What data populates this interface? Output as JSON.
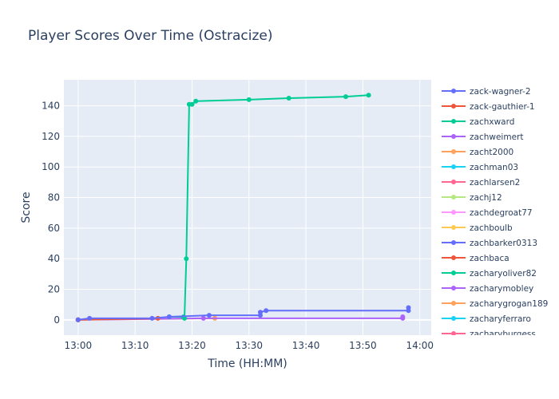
{
  "chart_data": {
    "type": "line",
    "title": "Player Scores Over Time (Ostracize)",
    "xlabel": "Time (HH:MM)",
    "ylabel": "Score",
    "x_axis_kind": "time",
    "xlim": [
      "12:57:30",
      "14:02:00"
    ],
    "ylim": [
      -10,
      157
    ],
    "x_ticks": [
      "13:00",
      "13:10",
      "13:20",
      "13:30",
      "13:40",
      "13:50",
      "14:00"
    ],
    "y_ticks": [
      0,
      20,
      40,
      60,
      80,
      100,
      120,
      140
    ],
    "grid": true,
    "legend_position": "right",
    "series": [
      {
        "name": "zack-wagner-2",
        "color": "#636efa",
        "points": [
          [
            "13:00:00",
            0
          ],
          [
            "13:02:00",
            1
          ],
          [
            "13:13:00",
            1
          ],
          [
            "13:16:00",
            2
          ],
          [
            "13:23:00",
            3
          ],
          [
            "13:32:00",
            3
          ],
          [
            "13:32:00",
            5
          ],
          [
            "13:33:00",
            6
          ],
          [
            "13:58:00",
            6
          ],
          [
            "13:58:00",
            8
          ]
        ]
      },
      {
        "name": "zack-gauthier-1",
        "color": "#ef553b",
        "points": [
          [
            "13:00:00",
            0
          ],
          [
            "13:14:00",
            1
          ]
        ]
      },
      {
        "name": "zachxward",
        "color": "#00cc96",
        "points": [
          [
            "13:16:00",
            2
          ],
          [
            "13:18:30",
            2
          ],
          [
            "13:18:40",
            1
          ],
          [
            "13:19:00",
            40
          ],
          [
            "13:19:30",
            141
          ],
          [
            "13:20:00",
            141
          ],
          [
            "13:20:40",
            143
          ],
          [
            "13:30:00",
            144
          ],
          [
            "13:37:00",
            145
          ],
          [
            "13:47:00",
            146
          ],
          [
            "13:51:00",
            147
          ]
        ]
      },
      {
        "name": "zachweimert",
        "color": "#ab63fa",
        "points": [
          [
            "13:00:00",
            0
          ],
          [
            "13:22:00",
            1
          ],
          [
            "13:57:00",
            1
          ],
          [
            "13:57:00",
            2
          ]
        ]
      },
      {
        "name": "zacht2000",
        "color": "#ffa15a",
        "points": [
          [
            "13:00:00",
            0
          ],
          [
            "13:24:00",
            1
          ]
        ]
      },
      {
        "name": "zachman03",
        "color": "#19d3f3",
        "points": [
          [
            "13:00:00",
            0
          ]
        ]
      },
      {
        "name": "zachlarsen2",
        "color": "#ff6692",
        "points": [
          [
            "13:00:00",
            0
          ]
        ]
      },
      {
        "name": "zachj12",
        "color": "#b6e880",
        "points": [
          [
            "13:00:00",
            0
          ]
        ]
      },
      {
        "name": "zachdegroat77",
        "color": "#ff97ff",
        "points": [
          [
            "13:00:00",
            0
          ]
        ]
      },
      {
        "name": "zachboulb",
        "color": "#fecb52",
        "points": [
          [
            "13:00:00",
            0
          ]
        ]
      },
      {
        "name": "zachbarker0313",
        "color": "#636efa",
        "points": [
          [
            "13:00:00",
            0
          ]
        ]
      },
      {
        "name": "zachbaca",
        "color": "#ef553b",
        "points": [
          [
            "13:00:00",
            0
          ]
        ]
      },
      {
        "name": "zacharyoliver82",
        "color": "#00cc96",
        "points": [
          [
            "13:00:00",
            0
          ]
        ]
      },
      {
        "name": "zacharymobley",
        "color": "#ab63fa",
        "points": [
          [
            "13:00:00",
            0
          ]
        ]
      },
      {
        "name": "zacharygrogan189",
        "color": "#ffa15a",
        "points": [
          [
            "13:00:00",
            0
          ]
        ]
      },
      {
        "name": "zacharyferraro",
        "color": "#19d3f3",
        "points": [
          [
            "13:00:00",
            0
          ]
        ]
      },
      {
        "name": "zacharyburgess",
        "color": "#ff6692",
        "points": [
          [
            "13:00:00",
            0
          ]
        ]
      }
    ]
  }
}
